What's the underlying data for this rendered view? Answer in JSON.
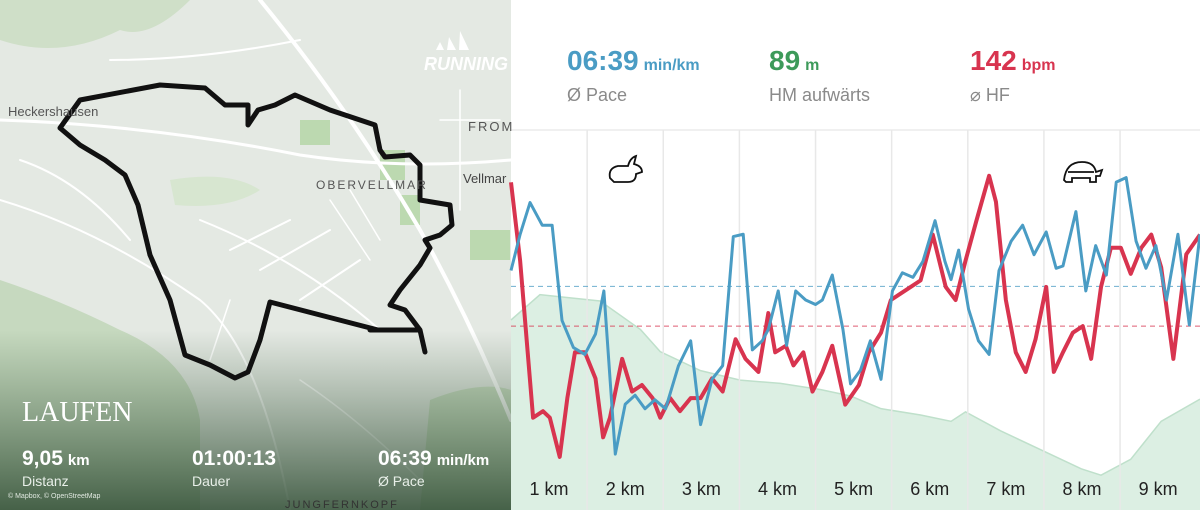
{
  "map": {
    "labels": [
      "Heckershausen",
      "OBERVELLMAR",
      "FROM",
      "Vellmar",
      "JUNGFERNKOPF"
    ],
    "attribution": "© Mapbox, © OpenStreetMap",
    "brand": "RUNNING"
  },
  "summary": {
    "activity": "LAUFEN",
    "stats": [
      {
        "value": "9,05",
        "unit": "km",
        "label": "Distanz"
      },
      {
        "value": "01:00:13",
        "label": "Dauer"
      },
      {
        "value": "06:39",
        "unit": "min/km",
        "label": "Ø Pace"
      }
    ]
  },
  "header": {
    "stats": [
      {
        "value": "06:39",
        "unit": "min/km",
        "label": "Ø Pace",
        "color": "#4a9cc4"
      },
      {
        "value": "89",
        "unit": "m",
        "label": "HM aufwärts",
        "color": "#3d9a5a"
      },
      {
        "value": "142",
        "unit": "bpm",
        "label": "⌀ HF",
        "color": "#d8344f"
      }
    ]
  },
  "chart_data": {
    "type": "line",
    "categories": [
      "1 km",
      "2 km",
      "3 km",
      "4 km",
      "5 km",
      "6 km",
      "7 km",
      "8 km",
      "9 km"
    ],
    "xlim": [
      0,
      9.05
    ],
    "ylim": [
      480,
      330
    ],
    "y2lim": [
      120,
      172
    ],
    "series": [
      {
        "color": "#4a9cc4",
        "axis": "y",
        "x": [
          0,
          0.12,
          0.25,
          0.41,
          0.54,
          0.67,
          0.82,
          0.97,
          1.11,
          1.22,
          1.37,
          1.5,
          1.63,
          1.76,
          1.89,
          2.03,
          2.2,
          2.36,
          2.49,
          2.64,
          2.78,
          2.92,
          3.05,
          3.17,
          3.3,
          3.38,
          3.51,
          3.62,
          3.74,
          3.87,
          4.0,
          4.09,
          4.22,
          4.36,
          4.46,
          4.59,
          4.72,
          4.86,
          5.01,
          5.14,
          5.28,
          5.41,
          5.57,
          5.7,
          5.78,
          5.88,
          6.01,
          6.14,
          6.28,
          6.41,
          6.57,
          6.72,
          6.87,
          7.03,
          7.16,
          7.25,
          7.42,
          7.55,
          7.68,
          7.82,
          7.95,
          8.08,
          8.21,
          8.34,
          8.47,
          8.61,
          8.76,
          8.91,
          9.05
        ],
        "values": [
          392,
          376,
          362,
          372,
          372,
          414,
          426,
          429,
          420,
          401,
          473,
          451,
          447,
          453,
          449,
          453,
          434,
          423,
          460,
          440,
          434,
          377,
          376,
          427,
          423,
          418,
          401,
          425,
          401,
          405,
          407,
          405,
          394,
          418,
          442,
          436,
          423,
          440,
          401,
          393,
          395,
          388,
          370,
          388,
          396,
          383,
          409,
          423,
          429,
          392,
          379,
          372,
          385,
          375,
          391,
          390,
          366,
          401,
          381,
          394,
          353,
          351,
          379,
          391,
          381,
          405,
          376,
          416,
          376
        ]
      },
      {
        "color": "#d8344f",
        "axis": "y2",
        "x": [
          0,
          0.12,
          0.29,
          0.42,
          0.51,
          0.64,
          0.74,
          0.84,
          0.97,
          1.11,
          1.21,
          1.3,
          1.46,
          1.59,
          1.72,
          1.86,
          1.96,
          2.09,
          2.22,
          2.36,
          2.49,
          2.64,
          2.78,
          2.95,
          3.08,
          3.25,
          3.38,
          3.47,
          3.61,
          3.71,
          3.84,
          3.96,
          4.09,
          4.22,
          4.39,
          4.57,
          4.7,
          4.86,
          4.99,
          5.12,
          5.25,
          5.38,
          5.54,
          5.71,
          5.84,
          5.97,
          6.11,
          6.28,
          6.37,
          6.5,
          6.63,
          6.76,
          6.89,
          7.03,
          7.13,
          7.25,
          7.38,
          7.51,
          7.62,
          7.75,
          7.88,
          8.01,
          8.14,
          8.28,
          8.41,
          8.54,
          8.7,
          8.87,
          9.05
        ],
        "values": [
          164,
          152,
          128,
          129,
          128,
          122,
          131,
          138,
          138,
          134,
          125,
          128,
          137,
          132,
          133,
          131,
          128,
          131,
          129,
          131,
          131,
          134,
          132,
          140,
          137,
          135,
          144,
          138,
          139,
          136,
          138,
          132,
          135,
          139,
          130,
          133,
          138,
          141,
          146,
          147,
          148,
          149,
          156,
          148,
          146,
          152,
          158,
          165,
          161,
          146,
          138,
          135,
          140,
          148,
          135,
          138,
          141,
          142,
          137,
          148,
          154,
          154,
          150,
          154,
          156,
          151,
          137,
          153,
          156
        ]
      }
    ],
    "area": {
      "color": "#dcefe3",
      "line_color": "#bfe0cb",
      "ylim": [
        150,
        270
      ],
      "x": [
        0,
        0.38,
        1.17,
        1.7,
        1.96,
        2.49,
        3.01,
        3.54,
        4.07,
        4.46,
        4.86,
        5.38,
        5.78,
        5.97,
        6.43,
        6.96,
        7.49,
        7.75,
        8.14,
        8.54,
        9.05
      ],
      "values": [
        210,
        218,
        216,
        207,
        200,
        194,
        191,
        190,
        188,
        186,
        182,
        180,
        178,
        181,
        175,
        169,
        163,
        161,
        166,
        178,
        185
      ]
    },
    "reference_lines": [
      {
        "axis": "y",
        "value": 399,
        "color": "#4a9cc4"
      },
      {
        "axis": "y2",
        "value": 142,
        "color": "#d8344f"
      }
    ]
  }
}
